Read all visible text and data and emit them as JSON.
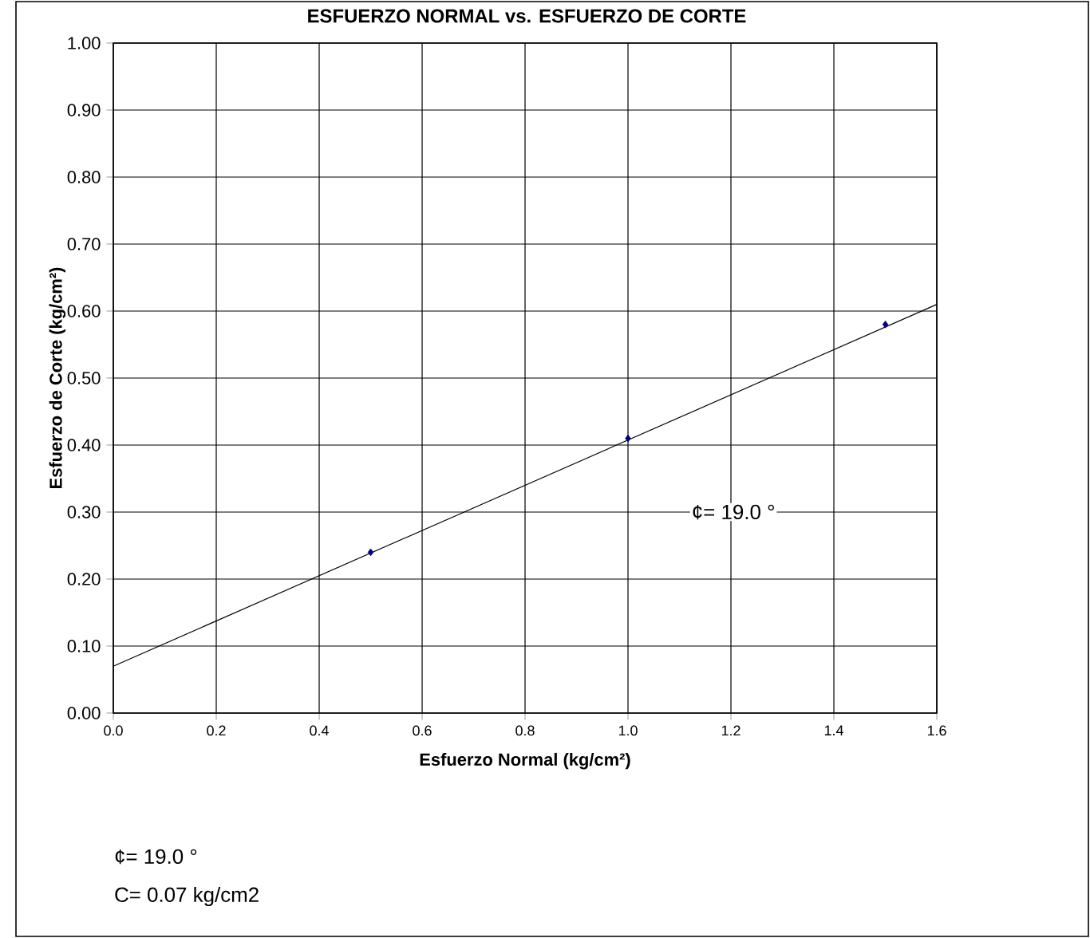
{
  "chart_data": {
    "type": "scatter",
    "title": "ESFUERZO NORMAL vs. ESFUERZO DE CORTE",
    "xlabel": "Esfuerzo Normal (kg/cm²)",
    "ylabel": "Esfuerzo de Corte (kg/cm²)",
    "annotations": [
      "¢=   19.0   °",
      "¢=   19.0   °",
      "C=   0.07   kg/cm2"
    ],
    "series": [
      {
        "color": "#000080",
        "x": [
          0.5,
          1.0,
          1.5
        ],
        "values": [
          0.24,
          0.41,
          0.58
        ],
        "marker": "diamond"
      },
      {
        "type": "line",
        "color": "#000000",
        "x": [
          0,
          1.6
        ],
        "values": [
          0.07,
          0.61
        ],
        "marker": "none",
        "line_style": "solid"
      }
    ],
    "xlim": [
      0,
      1.6
    ],
    "ylim": [
      0,
      1
    ],
    "xticks": [
      {
        "value": 0,
        "label": "0.0"
      },
      {
        "value": 0.2,
        "label": "0.2"
      },
      {
        "value": 0.4,
        "label": "0.4"
      },
      {
        "value": 0.6,
        "label": "0.6"
      },
      {
        "value": 0.8,
        "label": "0.8"
      },
      {
        "value": 1.0,
        "label": "1.0"
      },
      {
        "value": 1.2,
        "label": "1.2"
      },
      {
        "value": 1.4,
        "label": "1.4"
      },
      {
        "value": 1.6,
        "label": "1.6"
      }
    ],
    "yticks": [
      {
        "value": 0,
        "label": "0.00"
      },
      {
        "value": 0.1,
        "label": "0.10"
      },
      {
        "value": 0.2,
        "label": "0.20"
      },
      {
        "value": 0.3,
        "label": "0.30"
      },
      {
        "value": 0.4,
        "label": "0.40"
      },
      {
        "value": 0.5,
        "label": "0.50"
      },
      {
        "value": 0.6,
        "label": "0.60"
      },
      {
        "value": 0.7,
        "label": "0.70"
      },
      {
        "value": 0.8,
        "label": "0.80"
      },
      {
        "value": 0.9,
        "label": "0.90"
      },
      {
        "value": 1.0,
        "label": "1.00"
      }
    ],
    "grid": true
  }
}
